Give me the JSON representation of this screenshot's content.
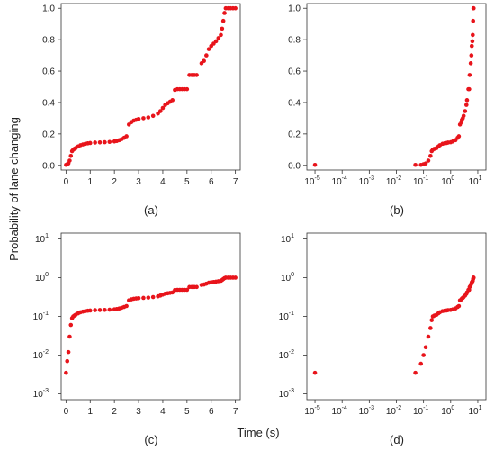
{
  "figure": {
    "ylabel": "Probability of lane changing",
    "xlabel": "Time (s)"
  },
  "colors": {
    "points": "#e8141b",
    "axis": "#333333"
  },
  "chart_data": [
    {
      "type": "scatter",
      "label": "(a)",
      "xscale": "linear",
      "yscale": "linear",
      "xlim": [
        -0.2,
        7.2
      ],
      "ylim": [
        -0.03,
        1.03
      ],
      "xticks": [
        0,
        1,
        2,
        3,
        4,
        5,
        6,
        7
      ],
      "xtick_labels": [
        "0",
        "1",
        "2",
        "3",
        "4",
        "5",
        "6",
        "7"
      ],
      "yticks": [
        0.0,
        0.2,
        0.4,
        0.6,
        0.8,
        1.0
      ],
      "ytick_labels": [
        "0.0",
        "0.2",
        "0.4",
        "0.6",
        "0.8",
        "1.0"
      ],
      "series": [
        {
          "x": [
            0.0,
            0.05,
            0.1,
            0.15,
            0.2,
            0.25,
            0.3,
            0.35,
            0.4,
            0.5,
            0.6,
            0.7,
            0.8,
            0.9,
            1.0,
            1.2,
            1.4,
            1.6,
            1.8,
            2.0,
            2.1,
            2.2,
            2.3,
            2.4,
            2.5,
            2.6,
            2.7,
            2.8,
            2.9,
            3.0,
            3.2,
            3.4,
            3.6,
            3.8,
            3.9,
            4.0,
            4.1,
            4.2,
            4.3,
            4.4,
            4.5,
            4.6,
            4.7,
            4.8,
            4.9,
            5.0,
            5.1,
            5.2,
            5.3,
            5.4,
            5.6,
            5.7,
            5.8,
            5.9,
            6.0,
            6.1,
            6.2,
            6.3,
            6.4,
            6.45,
            6.5,
            6.55,
            6.6,
            6.7,
            6.8,
            6.9,
            7.0
          ],
          "y": [
            0.003,
            0.007,
            0.012,
            0.03,
            0.06,
            0.09,
            0.1,
            0.105,
            0.11,
            0.12,
            0.128,
            0.133,
            0.137,
            0.14,
            0.142,
            0.145,
            0.146,
            0.147,
            0.149,
            0.152,
            0.155,
            0.16,
            0.167,
            0.175,
            0.185,
            0.26,
            0.275,
            0.285,
            0.29,
            0.295,
            0.3,
            0.305,
            0.315,
            0.33,
            0.345,
            0.365,
            0.385,
            0.395,
            0.405,
            0.415,
            0.48,
            0.485,
            0.485,
            0.485,
            0.485,
            0.485,
            0.575,
            0.575,
            0.575,
            0.575,
            0.65,
            0.665,
            0.7,
            0.74,
            0.76,
            0.775,
            0.79,
            0.81,
            0.83,
            0.87,
            0.92,
            0.97,
            1.0,
            1.0,
            1.0,
            1.0,
            1.0
          ]
        }
      ]
    },
    {
      "type": "scatter",
      "label": "(b)",
      "xscale": "log",
      "yscale": "linear",
      "xlim": [
        -5.3,
        1.3
      ],
      "ylim": [
        -0.03,
        1.03
      ],
      "xticks": [
        -5,
        -4,
        -3,
        -2,
        -1,
        0,
        1
      ],
      "xtick_labels": [
        "10",
        "10",
        "10",
        "10",
        "10",
        "10",
        "10"
      ],
      "xtick_exponents": [
        "-5",
        "-4",
        "-3",
        "-2",
        "-1",
        "0",
        "1"
      ],
      "yticks": [
        0.0,
        0.2,
        0.4,
        0.6,
        0.8,
        1.0
      ],
      "ytick_labels": [
        "0.0",
        "0.2",
        "0.4",
        "0.6",
        "0.8",
        "1.0"
      ],
      "series": [
        {
          "x": [
            1e-05,
            0.05,
            0.08,
            0.1,
            0.12,
            0.15,
            0.18,
            0.2,
            0.22,
            0.25,
            0.3,
            0.35,
            0.4,
            0.5,
            0.6,
            0.7,
            0.8,
            1.0,
            1.2,
            1.5,
            1.8,
            2.0,
            2.2,
            2.5,
            2.6,
            2.8,
            3.0,
            3.4,
            3.8,
            4.0,
            4.5,
            4.8,
            5.0,
            5.5,
            5.8,
            6.0,
            6.3,
            6.5,
            6.7,
            6.9,
            7.0
          ],
          "y": [
            0.003,
            0.003,
            0.003,
            0.007,
            0.012,
            0.03,
            0.06,
            0.09,
            0.1,
            0.105,
            0.11,
            0.12,
            0.128,
            0.137,
            0.14,
            0.142,
            0.145,
            0.147,
            0.152,
            0.16,
            0.175,
            0.185,
            0.26,
            0.275,
            0.29,
            0.3,
            0.315,
            0.345,
            0.385,
            0.415,
            0.485,
            0.485,
            0.575,
            0.65,
            0.7,
            0.76,
            0.79,
            0.83,
            0.92,
            1.0,
            1.0
          ]
        }
      ]
    },
    {
      "type": "scatter",
      "label": "(c)",
      "xscale": "linear",
      "yscale": "log",
      "xlim": [
        -0.2,
        7.2
      ],
      "ylim": [
        -3.15,
        1.15
      ],
      "xticks": [
        0,
        1,
        2,
        3,
        4,
        5,
        6,
        7
      ],
      "xtick_labels": [
        "0",
        "1",
        "2",
        "3",
        "4",
        "5",
        "6",
        "7"
      ],
      "yticks": [
        -3,
        -2,
        -1,
        0,
        1
      ],
      "ytick_labels": [
        "10",
        "10",
        "10",
        "10",
        "10"
      ],
      "ytick_exponents": [
        "-3",
        "-2",
        "-1",
        "0",
        "1"
      ],
      "series": [
        {
          "x": [
            0.0,
            0.05,
            0.1,
            0.15,
            0.2,
            0.25,
            0.3,
            0.35,
            0.4,
            0.5,
            0.6,
            0.7,
            0.8,
            0.9,
            1.0,
            1.2,
            1.4,
            1.6,
            1.8,
            2.0,
            2.1,
            2.2,
            2.3,
            2.4,
            2.5,
            2.6,
            2.7,
            2.8,
            2.9,
            3.0,
            3.2,
            3.4,
            3.6,
            3.8,
            3.9,
            4.0,
            4.1,
            4.2,
            4.3,
            4.4,
            4.5,
            4.6,
            4.7,
            4.8,
            4.9,
            5.0,
            5.1,
            5.2,
            5.3,
            5.4,
            5.6,
            5.7,
            5.8,
            5.9,
            6.0,
            6.1,
            6.2,
            6.3,
            6.4,
            6.45,
            6.5,
            6.55,
            6.6,
            6.7,
            6.8,
            6.9,
            7.0
          ],
          "y": [
            0.0035,
            0.007,
            0.012,
            0.03,
            0.06,
            0.09,
            0.1,
            0.105,
            0.11,
            0.12,
            0.128,
            0.133,
            0.137,
            0.14,
            0.142,
            0.145,
            0.146,
            0.147,
            0.149,
            0.152,
            0.155,
            0.16,
            0.167,
            0.175,
            0.185,
            0.26,
            0.275,
            0.285,
            0.29,
            0.295,
            0.3,
            0.305,
            0.315,
            0.33,
            0.345,
            0.365,
            0.385,
            0.395,
            0.405,
            0.415,
            0.48,
            0.485,
            0.485,
            0.485,
            0.485,
            0.485,
            0.575,
            0.575,
            0.575,
            0.575,
            0.65,
            0.665,
            0.7,
            0.74,
            0.76,
            0.775,
            0.79,
            0.81,
            0.83,
            0.87,
            0.92,
            0.97,
            1.0,
            1.0,
            1.0,
            1.0,
            1.0
          ]
        }
      ]
    },
    {
      "type": "scatter",
      "label": "(d)",
      "xscale": "log",
      "yscale": "log",
      "xlim": [
        -5.3,
        1.3
      ],
      "ylim": [
        -3.15,
        1.15
      ],
      "xticks": [
        -5,
        -4,
        -3,
        -2,
        -1,
        0,
        1
      ],
      "xtick_labels": [
        "10",
        "10",
        "10",
        "10",
        "10",
        "10",
        "10"
      ],
      "xtick_exponents": [
        "-5",
        "-4",
        "-3",
        "-2",
        "-1",
        "0",
        "1"
      ],
      "yticks": [
        -3,
        -2,
        -1,
        0,
        1
      ],
      "ytick_labels": [
        "10",
        "10",
        "10",
        "10",
        "10"
      ],
      "ytick_exponents": [
        "-3",
        "-2",
        "-1",
        "0",
        "1"
      ],
      "series": [
        {
          "x": [
            1e-05,
            0.05,
            0.08,
            0.1,
            0.12,
            0.15,
            0.18,
            0.2,
            0.22,
            0.25,
            0.3,
            0.35,
            0.4,
            0.5,
            0.6,
            0.7,
            0.8,
            1.0,
            1.2,
            1.5,
            1.8,
            2.0,
            2.2,
            2.5,
            2.6,
            2.8,
            3.0,
            3.4,
            3.8,
            4.0,
            4.5,
            4.8,
            5.0,
            5.5,
            5.8,
            6.0,
            6.3,
            6.5,
            6.7,
            6.9,
            7.0
          ],
          "y": [
            0.0035,
            0.0035,
            0.006,
            0.01,
            0.016,
            0.03,
            0.05,
            0.08,
            0.1,
            0.105,
            0.11,
            0.12,
            0.128,
            0.137,
            0.14,
            0.142,
            0.145,
            0.147,
            0.152,
            0.16,
            0.175,
            0.185,
            0.26,
            0.275,
            0.29,
            0.3,
            0.315,
            0.345,
            0.385,
            0.415,
            0.485,
            0.485,
            0.575,
            0.65,
            0.7,
            0.76,
            0.79,
            0.83,
            0.92,
            1.0,
            1.0
          ]
        }
      ]
    }
  ]
}
